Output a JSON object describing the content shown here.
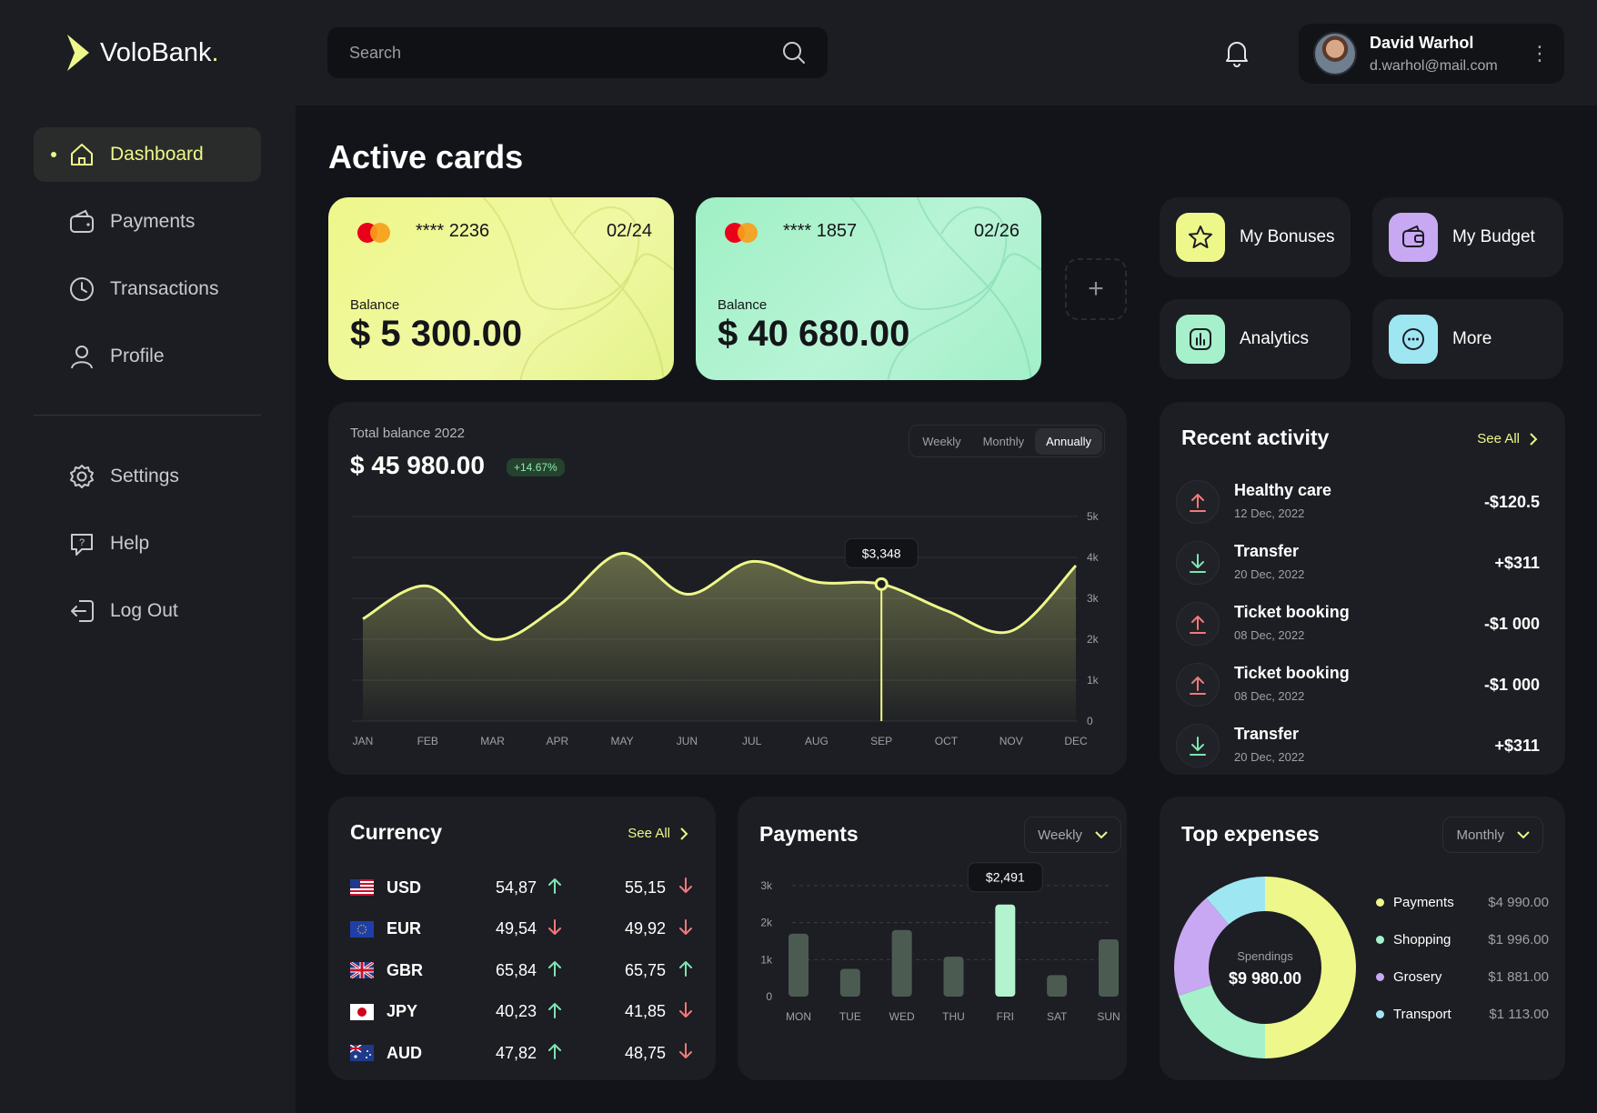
{
  "app": {
    "brand": "VoloBank",
    "brand_dot": "."
  },
  "sidebar": {
    "items": [
      {
        "label": "Dashboard",
        "icon": "home-icon",
        "active": true
      },
      {
        "label": "Payments",
        "icon": "wallet-icon"
      },
      {
        "label": "Transactions",
        "icon": "clock-icon"
      },
      {
        "label": "Profile",
        "icon": "user-icon"
      },
      {
        "label": "Settings",
        "icon": "gear-icon"
      },
      {
        "label": "Help",
        "icon": "help-icon"
      },
      {
        "label": "Log Out",
        "icon": "logout-icon"
      }
    ]
  },
  "topbar": {
    "search_placeholder": "Search",
    "user": {
      "name": "David Warhol",
      "email": "d.warhol@mail.com"
    }
  },
  "main": {
    "title": "Active cards",
    "cards": [
      {
        "number": "**** 2236",
        "expiry": "02/24",
        "balance_label": "Balance",
        "balance": "$ 5 300.00",
        "color": "#eef78a"
      },
      {
        "number": "**** 1857",
        "expiry": "02/26",
        "balance_label": "Balance",
        "balance": "$ 40 680.00",
        "color": "#a6f0cb"
      }
    ],
    "add_card_label": "+",
    "quick_actions": [
      {
        "label": "My Bonuses",
        "icon": "star-icon",
        "color": "#eef78a"
      },
      {
        "label": "My Budget",
        "icon": "wallet-icon",
        "color": "#c8a8f3"
      },
      {
        "label": "Analytics",
        "icon": "bar-chart-icon",
        "color": "#a6f0cb"
      },
      {
        "label": "More",
        "icon": "more-icon",
        "color": "#9fe6f3"
      }
    ],
    "total_balance": {
      "title": "Total balance 2022",
      "value": "$ 45 980.00",
      "change": "+14.67%",
      "tabs": [
        "Weekly",
        "Monthly",
        "Annually"
      ],
      "active_tab": "Annually"
    },
    "recent_activity": {
      "title": "Recent activity",
      "see_all": "See All",
      "items": [
        {
          "name": "Healthy care",
          "date": "12 Dec, 2022",
          "amount": "-$120.5",
          "direction": "out"
        },
        {
          "name": "Transfer",
          "date": "20 Dec, 2022",
          "amount": "+$311",
          "direction": "in"
        },
        {
          "name": "Ticket booking",
          "date": "08 Dec, 2022",
          "amount": "-$1 000",
          "direction": "out"
        },
        {
          "name": "Ticket booking",
          "date": "08 Dec, 2022",
          "amount": "-$1 000",
          "direction": "out"
        },
        {
          "name": "Transfer",
          "date": "20 Dec, 2022",
          "amount": "+$311",
          "direction": "in"
        }
      ]
    },
    "currency": {
      "title": "Currency",
      "see_all": "See All",
      "rows": [
        {
          "code": "USD",
          "buy": "54,87",
          "buy_dir": "up",
          "sell": "55,15",
          "sell_dir": "down"
        },
        {
          "code": "EUR",
          "buy": "49,54",
          "buy_dir": "down",
          "sell": "49,92",
          "sell_dir": "down"
        },
        {
          "code": "GBR",
          "buy": "65,84",
          "buy_dir": "up",
          "sell": "65,75",
          "sell_dir": "up"
        },
        {
          "code": "JPY",
          "buy": "40,23",
          "buy_dir": "up",
          "sell": "41,85",
          "sell_dir": "down"
        },
        {
          "code": "AUD",
          "buy": "47,82",
          "buy_dir": "up",
          "sell": "48,75",
          "sell_dir": "down"
        }
      ]
    },
    "payments": {
      "title": "Payments",
      "period": "Weekly"
    },
    "top_expenses": {
      "title": "Top expenses",
      "period": "Monthly",
      "center_label": "Spendings",
      "center_value": "$9 980.00"
    }
  },
  "chart_data": [
    {
      "type": "area",
      "x": [
        "JAN",
        "FEB",
        "MAR",
        "APR",
        "MAY",
        "JUN",
        "JUL",
        "AUG",
        "SEP",
        "OCT",
        "NOV",
        "DEC"
      ],
      "series": [
        {
          "values": [
            2500,
            3300,
            2000,
            2800,
            4100,
            3100,
            3900,
            3400,
            3348,
            2700,
            2200,
            3800
          ]
        }
      ],
      "yticks": [
        "0",
        "1k",
        "2k",
        "3k",
        "4k",
        "5k"
      ],
      "ylim": [
        0,
        5000
      ],
      "highlight": {
        "x": "SEP",
        "label": "$3,348"
      },
      "grid": true,
      "color": "#eef78a"
    },
    {
      "type": "bar",
      "categories": [
        "MON",
        "TUE",
        "WED",
        "THU",
        "FRI",
        "SAT",
        "SUN"
      ],
      "values": [
        1700,
        750,
        1800,
        1080,
        2491,
        580,
        1550
      ],
      "yticks": [
        "0",
        "1k",
        "2k",
        "3k"
      ],
      "ylim": [
        0,
        3000
      ],
      "highlight": {
        "category": "FRI",
        "label": "$2,491"
      },
      "grid": true,
      "colors": {
        "bar": "#4c5b52",
        "highlight": "#b3f3cf"
      }
    },
    {
      "type": "pie",
      "categories": [
        "Payments",
        "Shopping",
        "Grosery",
        "Transport"
      ],
      "values": [
        4990.0,
        1996.0,
        1881.0,
        1113.0
      ],
      "labels": [
        "$4 990.00",
        "$1 996.00",
        "$1 881.00",
        "$1 113.00"
      ],
      "colors": [
        "#eef78a",
        "#a6f0cb",
        "#c8a8f3",
        "#9fe6f3"
      ],
      "legend": "right"
    }
  ]
}
